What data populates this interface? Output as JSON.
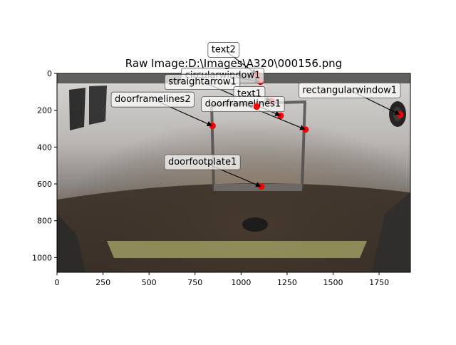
{
  "chart_data": {
    "type": "scatter",
    "title": "Raw Image:D:\\Images\\A320\\000156.png",
    "xlabel": "",
    "ylabel": "",
    "xlim": [
      0,
      1920
    ],
    "ylim": [
      1080,
      0
    ],
    "y_inverted": true,
    "grid": false,
    "xticks": [
      0,
      250,
      500,
      750,
      1000,
      1250,
      1500,
      1750
    ],
    "yticks": [
      0,
      200,
      400,
      600,
      800,
      1000
    ],
    "background_image": "aircraft fuselage door photo",
    "marker_color": "#ff0000",
    "annotations": [
      {
        "label": "text2",
        "point": [
          1085,
          5
        ],
        "text_at": [
          905,
          -130
        ]
      },
      {
        "label": "circularwindow1",
        "point": [
          1105,
          45
        ],
        "text_at": [
          900,
          10
        ]
      },
      {
        "label": "straightarrow1",
        "point": [
          1215,
          230
        ],
        "text_at": [
          790,
          45
        ]
      },
      {
        "label": "text1",
        "point": [
          1165,
          150
        ],
        "text_at": [
          1045,
          110
        ]
      },
      {
        "label": "rectangularwindow1",
        "point": [
          1865,
          225
        ],
        "text_at": [
          1590,
          90
        ]
      },
      {
        "label": "doorframelines2",
        "point": [
          845,
          285
        ],
        "text_at": [
          520,
          140
        ]
      },
      {
        "label": "doorframelines1",
        "point": [
          1350,
          305
        ],
        "text_at": [
          1010,
          165
        ]
      },
      {
        "label": "doorfootplate1",
        "point": [
          1110,
          615
        ],
        "text_at": [
          790,
          480
        ]
      }
    ],
    "labeled_points": [
      {
        "name": "circularwindow1",
        "x": 1085,
        "y": 180
      }
    ]
  }
}
